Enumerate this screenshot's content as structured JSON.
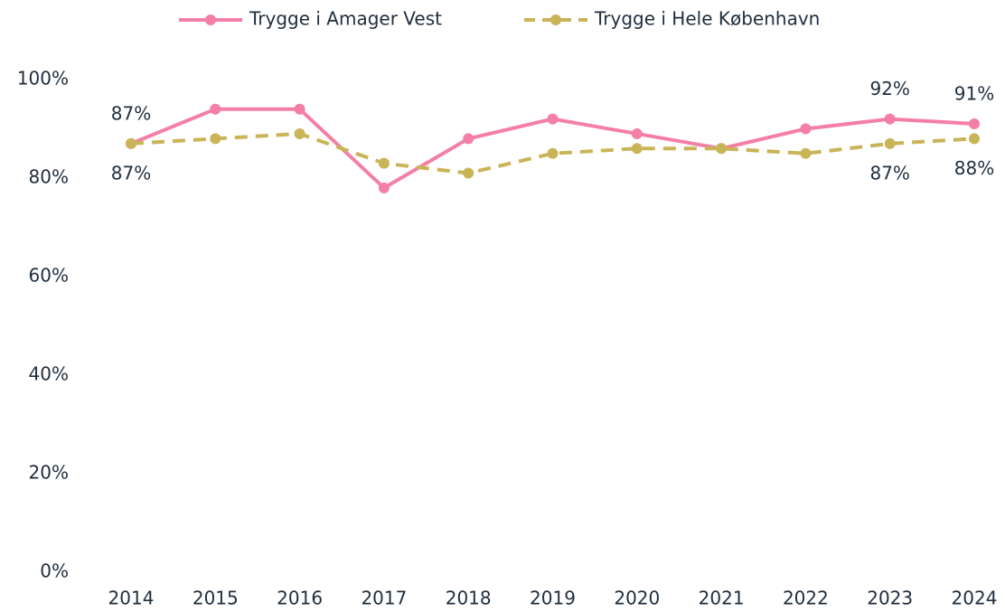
{
  "chart_data": {
    "type": "line",
    "categories": [
      "2014",
      "2015",
      "2016",
      "2017",
      "2018",
      "2019",
      "2020",
      "2021",
      "2022",
      "2023",
      "2024"
    ],
    "series": [
      {
        "name": "Trygge i Amager Vest",
        "color": "#f47fa4",
        "dash": false,
        "values": [
          87,
          94,
          94,
          78,
          88,
          92,
          89,
          86,
          90,
          92,
          91
        ],
        "value_labels": [
          "87%",
          null,
          null,
          null,
          null,
          null,
          null,
          null,
          null,
          "92%",
          "91%"
        ]
      },
      {
        "name": "Trygge i Hele København",
        "color": "#c9b457",
        "dash": true,
        "values": [
          87,
          88,
          89,
          83,
          81,
          85,
          86,
          86,
          85,
          87,
          88
        ],
        "value_labels": [
          "87%",
          null,
          null,
          null,
          null,
          null,
          null,
          null,
          null,
          "87%",
          "88%"
        ]
      }
    ],
    "ylim": [
      0,
      100
    ],
    "yticks": [
      {
        "value": 0,
        "label": "0%"
      },
      {
        "value": 20,
        "label": "20%"
      },
      {
        "value": 40,
        "label": "40%"
      },
      {
        "value": 60,
        "label": "60%"
      },
      {
        "value": 80,
        "label": "80%"
      },
      {
        "value": 100,
        "label": "100%"
      }
    ],
    "grid": false,
    "legend": "top"
  }
}
